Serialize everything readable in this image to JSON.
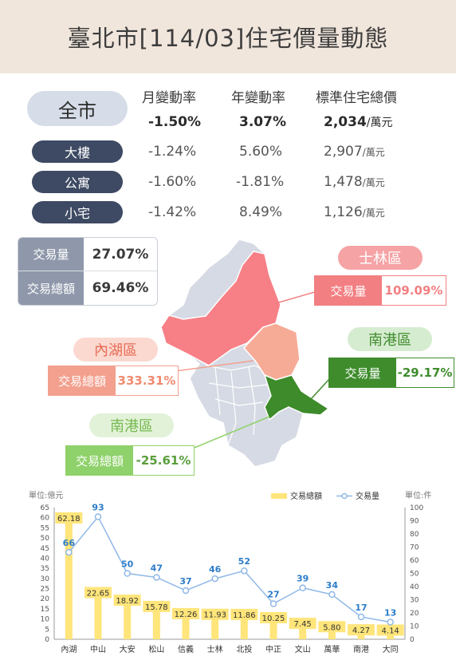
{
  "header": {
    "title": "臺北市[114/03]住宅價量動態"
  },
  "stats": {
    "columns": [
      "月變動率",
      "年變動率",
      "標準住宅總價"
    ],
    "unit": "/萬元",
    "rows": [
      {
        "label": "全市",
        "monthly": "-1.50%",
        "yearly": "3.07%",
        "price": "2,034"
      },
      {
        "label": "大樓",
        "monthly": "-1.24%",
        "yearly": "5.60%",
        "price": "2,907"
      },
      {
        "label": "公寓",
        "monthly": "-1.60%",
        "yearly": "-1.81%",
        "price": "1,478"
      },
      {
        "label": "小宅",
        "monthly": "-1.42%",
        "yearly": "8.49%",
        "price": "1,126"
      }
    ]
  },
  "transactions": {
    "volume_label": "交易量",
    "volume_value": "27.07%",
    "amount_label": "交易總額",
    "amount_value": "69.46%"
  },
  "map": {
    "callouts": [
      {
        "district": "士林區",
        "label": "交易量",
        "value": "109.09%",
        "color": "#f27f82",
        "pill_color": "#f5a3a5"
      },
      {
        "district": "內湖區",
        "label": "交易總額",
        "value": "333.31%",
        "color": "#f3a08f",
        "pill_color": "#fbd9d0"
      },
      {
        "district": "南港區",
        "label": "交易量",
        "value": "-29.17%",
        "color": "#3f8c2d",
        "pill_color": "#d6ecd0"
      },
      {
        "district": "南港區",
        "label": "交易總額",
        "value": "-25.61%",
        "color": "#8fd16a",
        "pill_color": "#e2f2d8"
      }
    ],
    "colors": {
      "base": "#d5dae4",
      "shilin": "#f77f86",
      "neihu": "#f6ab96",
      "nangang": "#3d8b2a"
    }
  },
  "chart_data": {
    "type": "bar+line",
    "categories": [
      "內湖",
      "中山",
      "大安",
      "松山",
      "信義",
      "士林",
      "北投",
      "中正",
      "文山",
      "萬華",
      "南港",
      "大同"
    ],
    "series": [
      {
        "name": "交易總額",
        "type": "bar",
        "axis": "left",
        "values": [
          62.18,
          22.65,
          18.92,
          15.78,
          12.26,
          11.93,
          11.86,
          10.25,
          7.45,
          5.8,
          4.27,
          4.14
        ],
        "color": "#ffe57a"
      },
      {
        "name": "交易量",
        "type": "line",
        "axis": "right",
        "values": [
          66,
          93,
          50,
          47,
          37,
          46,
          52,
          27,
          39,
          34,
          17,
          13
        ],
        "color": "#8fb8e8"
      }
    ],
    "left_axis": {
      "label": "單位:億元",
      "ylim": [
        0,
        65
      ],
      "ticks": [
        0,
        5,
        10,
        15,
        20,
        25,
        30,
        35,
        40,
        45,
        50,
        55,
        60,
        65
      ]
    },
    "right_axis": {
      "label": "單位:件",
      "ylim": [
        0,
        100
      ],
      "ticks": [
        0,
        10,
        20,
        30,
        40,
        50,
        60,
        70,
        80,
        90,
        100
      ]
    },
    "legend": "top-right"
  }
}
